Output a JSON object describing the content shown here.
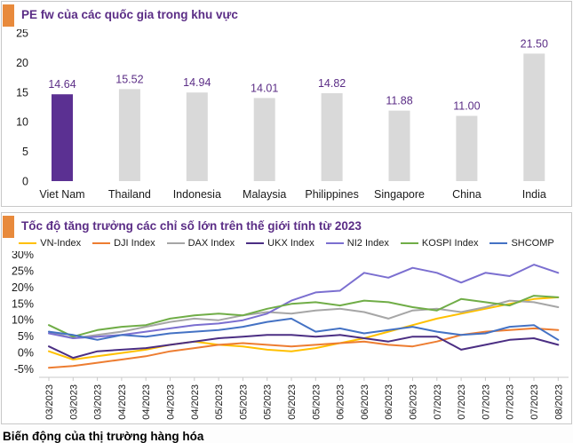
{
  "footer": {
    "next_section_title": "Biến động của thị trường hàng hóa"
  },
  "colors": {
    "accent_orange": "#e88a3c",
    "title_purple": "#5b2d86",
    "panel_border": "#c8c8c8",
    "bar_highlight": "#5b3092",
    "bar_default": "#d9d9d9"
  },
  "chart_data": [
    {
      "type": "bar",
      "title": "PE fw của các quốc gia trong khu vực",
      "categories": [
        "Viet Nam",
        "Thailand",
        "Indonesia",
        "Malaysia",
        "Philippines",
        "Singapore",
        "China",
        "India"
      ],
      "values": [
        14.64,
        15.52,
        14.94,
        14.01,
        14.82,
        11.88,
        11.0,
        21.5
      ],
      "value_labels": [
        "14.64",
        "15.52",
        "14.94",
        "14.01",
        "14.82",
        "11.88",
        "11.00",
        "21.50"
      ],
      "highlight_index": 0,
      "highlight_category": "Viet Nam",
      "bar_color_highlight": "#5b3092",
      "bar_color_default": "#d9d9d9",
      "label_color": "#5b2d86",
      "ylim": [
        0,
        25
      ],
      "yticks": [
        0,
        5,
        10,
        15,
        20,
        25
      ],
      "grid": false,
      "legend": false
    },
    {
      "type": "line",
      "title": "Tốc độ tăng trưởng các chỉ số lớn trên thế giới tính từ 2023",
      "legend_position": "top",
      "grid": false,
      "ylim": [
        -7,
        31
      ],
      "ytick_values": [
        30,
        25,
        20,
        15,
        10,
        5,
        0,
        -5
      ],
      "yticks": [
        "30%",
        "25%",
        "20%",
        "15%",
        "10%",
        "5%",
        "0%",
        "-5%"
      ],
      "x_labels": [
        "03/2023",
        "03/2023",
        "03/2023",
        "04/2023",
        "04/2023",
        "04/2023",
        "04/2023",
        "05/2023",
        "05/2023",
        "05/2023",
        "05/2023",
        "05/2023",
        "06/2023",
        "06/2023",
        "06/2023",
        "06/2023",
        "07/2023",
        "07/2023",
        "07/2023",
        "07/2023",
        "07/2023",
        "08/2023"
      ],
      "series": [
        {
          "name": "VN-Index",
          "color": "#ffc000",
          "values": [
            0.5,
            -2.0,
            -1.0,
            0.0,
            1.0,
            2.5,
            3.5,
            2.5,
            2.0,
            1.0,
            0.5,
            1.5,
            3.0,
            4.5,
            6.5,
            8.5,
            10.5,
            12.0,
            13.5,
            15.0,
            16.5,
            17.0
          ]
        },
        {
          "name": "DJI Index",
          "color": "#ed7d31",
          "values": [
            -4.5,
            -4.0,
            -3.0,
            -2.0,
            -1.0,
            0.5,
            1.5,
            2.5,
            3.0,
            2.5,
            2.0,
            2.5,
            3.0,
            3.5,
            2.5,
            2.0,
            3.5,
            5.5,
            6.5,
            7.0,
            7.5,
            7.0
          ]
        },
        {
          "name": "DAX Index",
          "color": "#a6a6a6",
          "values": [
            6.5,
            4.5,
            5.5,
            6.5,
            8.0,
            9.5,
            10.5,
            10.0,
            11.5,
            12.5,
            12.0,
            13.0,
            13.5,
            12.5,
            10.5,
            13.0,
            13.5,
            12.5,
            14.0,
            16.0,
            15.5,
            14.0
          ]
        },
        {
          "name": "UKX Index",
          "color": "#4b2e83",
          "values": [
            2.0,
            -1.5,
            0.5,
            1.0,
            1.5,
            2.5,
            3.5,
            4.5,
            5.0,
            5.5,
            5.5,
            5.0,
            5.5,
            4.5,
            3.5,
            5.0,
            5.0,
            1.0,
            2.5,
            4.0,
            4.5,
            2.5
          ]
        },
        {
          "name": "NI2 Index",
          "color": "#7b6fd0",
          "values": [
            6.0,
            4.5,
            5.0,
            5.5,
            6.5,
            7.5,
            8.5,
            9.0,
            10.0,
            12.0,
            16.0,
            18.5,
            19.0,
            24.5,
            23.0,
            26.0,
            24.5,
            21.5,
            24.5,
            23.5,
            27.0,
            24.5
          ]
        },
        {
          "name": "KOSPI Index",
          "color": "#70ad47",
          "values": [
            8.5,
            5.0,
            7.0,
            8.0,
            8.5,
            10.5,
            11.5,
            12.0,
            11.5,
            13.5,
            15.0,
            15.5,
            14.5,
            16.0,
            15.5,
            14.0,
            13.0,
            16.5,
            15.5,
            14.5,
            17.5,
            17.0
          ]
        },
        {
          "name": "SHCOMP",
          "color": "#4472c4",
          "values": [
            6.5,
            5.5,
            4.0,
            5.5,
            5.0,
            6.0,
            6.5,
            7.0,
            8.0,
            9.5,
            10.5,
            6.5,
            7.5,
            6.0,
            7.0,
            8.0,
            6.5,
            5.5,
            6.0,
            8.0,
            8.5,
            4.0
          ]
        }
      ]
    }
  ]
}
